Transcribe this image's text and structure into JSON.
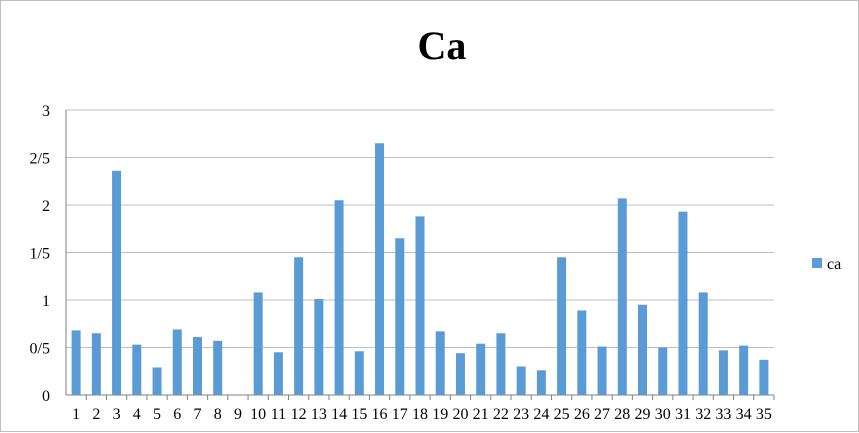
{
  "chart_data": {
    "type": "bar",
    "title": "Ca",
    "xlabel": "",
    "ylabel": "",
    "categories": [
      "1",
      "2",
      "3",
      "4",
      "5",
      "6",
      "7",
      "8",
      "9",
      "10",
      "11",
      "12",
      "13",
      "14",
      "15",
      "16",
      "17",
      "18",
      "19",
      "20",
      "21",
      "22",
      "23",
      "24",
      "25",
      "26",
      "27",
      "28",
      "29",
      "30",
      "31",
      "32",
      "33",
      "34",
      "35"
    ],
    "series": [
      {
        "name": "ca",
        "color": "#5b9bd5",
        "values": [
          0.68,
          0.65,
          2.36,
          0.53,
          0.29,
          0.69,
          0.61,
          0.57,
          0,
          1.08,
          0.45,
          1.45,
          1.01,
          2.05,
          0.46,
          2.65,
          1.65,
          1.88,
          0.67,
          0.44,
          0.54,
          0.65,
          0.3,
          0.26,
          1.45,
          0.89,
          0.51,
          2.07,
          0.95,
          0.5,
          1.93,
          1.08,
          0.47,
          0.52,
          0.37
        ]
      }
    ],
    "ylim": [
      0,
      3
    ],
    "yticks": [
      {
        "value": 0,
        "label": "0"
      },
      {
        "value": 0.5,
        "label": "0/5"
      },
      {
        "value": 1,
        "label": "1"
      },
      {
        "value": 1.5,
        "label": "1/5"
      },
      {
        "value": 2,
        "label": "2"
      },
      {
        "value": 2.5,
        "label": "2/5"
      },
      {
        "value": 3,
        "label": "3"
      }
    ],
    "grid": true,
    "legend_position": "right"
  }
}
